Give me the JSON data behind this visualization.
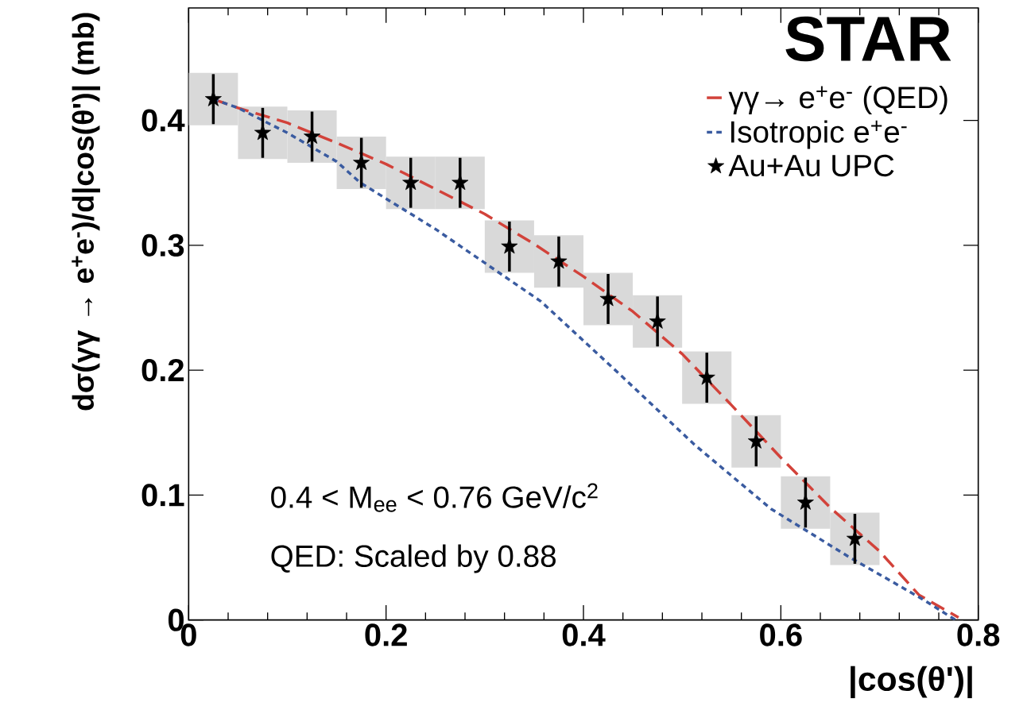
{
  "chart_data": {
    "type": "scatter",
    "xlabel": "|cos(θ')|",
    "ylabel": "dσ(γγ → e$^{+}$e$^{-}$)/d|cos(θ')| (mb)",
    "xlim": [
      0,
      0.8
    ],
    "ylim": [
      0,
      0.49
    ],
    "xticks": [
      0,
      0.2,
      0.4,
      0.6,
      0.8
    ],
    "yticks": [
      0,
      0.1,
      0.2,
      0.3,
      0.4
    ],
    "legend": "top right",
    "annotations": [
      "STAR",
      "0.4 < M$_{ee}$ < 0.76 GeV/c$^{2}$",
      "QED: Scaled by 0.88"
    ],
    "series": [
      {
        "type": "bar",
        "color": "#d9d9d9",
        "x": [
          0.025,
          0.075,
          0.125,
          0.175,
          0.225,
          0.275,
          0.325,
          0.375,
          0.425,
          0.475,
          0.525,
          0.575,
          0.625,
          0.675
        ],
        "base": [
          0.396,
          0.369,
          0.366,
          0.345,
          0.329,
          0.329,
          0.278,
          0.266,
          0.236,
          0.218,
          0.173,
          0.122,
          0.073,
          0.044
        ],
        "values": [
          0.042,
          0.042,
          0.042,
          0.042,
          0.042,
          0.042,
          0.042,
          0.042,
          0.042,
          0.042,
          0.042,
          0.042,
          0.042,
          0.042
        ]
      },
      {
        "type": "line",
        "name": "γγ→ e$^{+}$e$^{-}$ (QED)",
        "color": "#d2423a",
        "line_style": "dashed",
        "marker": "none",
        "x": [
          0.025,
          0.05,
          0.1,
          0.15,
          0.2,
          0.25,
          0.3,
          0.35,
          0.4,
          0.45,
          0.5,
          0.55,
          0.6,
          0.65,
          0.7,
          0.74,
          0.78
        ],
        "values": [
          0.417,
          0.41,
          0.398,
          0.382,
          0.365,
          0.345,
          0.325,
          0.301,
          0.275,
          0.247,
          0.213,
          0.172,
          0.13,
          0.09,
          0.055,
          0.02,
          0.002
        ]
      },
      {
        "type": "line",
        "name": "Isotropic e$^{+}$e$^{-}$",
        "color": "#3a5ba0",
        "line_style": "dotted",
        "marker": "none",
        "x": [
          0.025,
          0.05,
          0.1,
          0.15,
          0.174,
          0.25,
          0.357,
          0.435,
          0.513,
          0.59,
          0.668,
          0.745,
          0.777
        ],
        "values": [
          0.417,
          0.41,
          0.39,
          0.367,
          0.35,
          0.313,
          0.255,
          0.198,
          0.14,
          0.089,
          0.051,
          0.016,
          0.0
        ]
      },
      {
        "name": "Au+Au UPC",
        "color": "#000000",
        "marker": "star",
        "x": [
          0.025,
          0.075,
          0.125,
          0.175,
          0.225,
          0.275,
          0.325,
          0.375,
          0.425,
          0.475,
          0.525,
          0.575,
          0.625,
          0.675
        ],
        "values": [
          0.417,
          0.39,
          0.387,
          0.366,
          0.35,
          0.35,
          0.299,
          0.287,
          0.257,
          0.239,
          0.194,
          0.143,
          0.094,
          0.065
        ],
        "errors": [
          0.02,
          0.02,
          0.02,
          0.02,
          0.02,
          0.02,
          0.02,
          0.02,
          0.02,
          0.02,
          0.02,
          0.02,
          0.02,
          0.02
        ]
      }
    ]
  }
}
